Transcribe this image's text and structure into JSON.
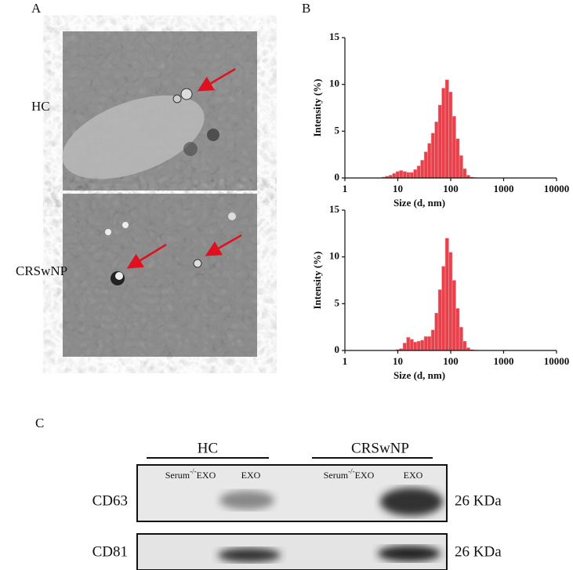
{
  "panels": {
    "a": "A",
    "b": "B",
    "c": "C"
  },
  "tem": {
    "top_label": "HC",
    "bottom_label": "CRSwNP"
  },
  "chart_data": [
    {
      "type": "histogram",
      "xlabel": "Size (d, nm)",
      "ylabel": "Intensity (%)",
      "xscale": "log",
      "color": "#e8414b",
      "bins": [
        5.0,
        5.8,
        6.8,
        7.9,
        9.2,
        10.7,
        12.5,
        14.6,
        17.0,
        19.8,
        23.1,
        26.9,
        31.4,
        36.6,
        42.7,
        49.8,
        58.0,
        67.6,
        78.8,
        91.9,
        107,
        125,
        146,
        170,
        198,
        231,
        269,
        314
      ],
      "values": [
        0.1,
        0.2,
        0.3,
        0.5,
        0.7,
        0.8,
        0.7,
        0.6,
        0.6,
        0.9,
        1.3,
        1.9,
        2.8,
        3.7,
        4.8,
        6.0,
        7.8,
        9.6,
        10.5,
        9.2,
        6.6,
        4.2,
        2.4,
        1.0,
        0.3,
        0.1,
        0.05
      ],
      "xlim": [
        1,
        10000
      ],
      "xticks": [
        1,
        10,
        100,
        1000,
        10000
      ],
      "ylim": [
        0,
        15
      ],
      "yticks": [
        0,
        5,
        10,
        15
      ]
    },
    {
      "type": "histogram",
      "xlabel": "Size (d, nm)",
      "ylabel": "Intensity (%)",
      "xscale": "log",
      "color": "#e8414b",
      "bins": [
        5.0,
        5.8,
        6.8,
        7.9,
        9.2,
        10.7,
        12.5,
        14.6,
        17.0,
        19.8,
        23.1,
        26.9,
        31.4,
        36.6,
        42.7,
        49.8,
        58.0,
        67.6,
        78.8,
        91.9,
        107,
        125,
        146,
        170,
        198,
        231,
        269,
        314
      ],
      "values": [
        0,
        0,
        0,
        0,
        0.1,
        0.2,
        0.8,
        1.4,
        1.2,
        0.9,
        1.0,
        1.1,
        1.5,
        1.5,
        2.2,
        4.0,
        6.5,
        9.0,
        12.0,
        10.5,
        7.5,
        4.5,
        2.5,
        1.0,
        0.3,
        0.1,
        0.05
      ],
      "xlim": [
        1,
        10000
      ],
      "xticks": [
        1,
        10,
        100,
        1000,
        10000
      ],
      "ylim": [
        0,
        15
      ],
      "yticks": [
        0,
        5,
        10,
        15
      ]
    }
  ],
  "blot": {
    "groups": [
      "HC",
      "CRSwNP"
    ],
    "lanes": [
      {
        "base": "Serum",
        "sup": "-/-",
        "rest": "EXO"
      },
      "EXO",
      {
        "base": "Serum",
        "sup": "-/-",
        "rest": "EXO"
      },
      "EXO"
    ],
    "rows": [
      {
        "name": "CD63",
        "size": "26 KDa"
      },
      {
        "name": "CD81",
        "size": "26 KDa"
      }
    ]
  }
}
